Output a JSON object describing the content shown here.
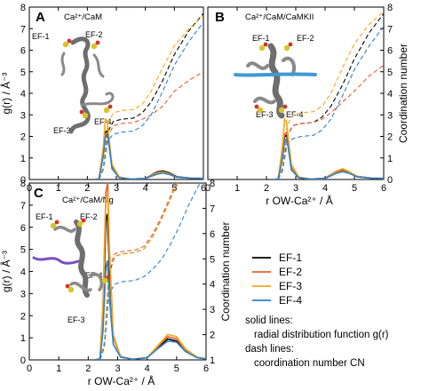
{
  "colors": {
    "EF-1": "#000000",
    "EF-2": "#e8602c",
    "EF-3": "#f2a81d",
    "EF-4": "#2f80c8",
    "protein": "#6e6e6e",
    "peptide_B": "#3e9ad2",
    "peptide_C": "#7a4fc2"
  },
  "legend": {
    "entries": [
      "EF-1",
      "EF-2",
      "EF-3",
      "EF-4"
    ],
    "solid_header": "solid lines:",
    "solid_text": "radial distribution function g(r)",
    "dash_header": "dash lines:",
    "dash_text": "coordination number CN"
  },
  "chart_data": [
    {
      "panel": "A",
      "title": "Ca²⁺/CaM",
      "type": "line",
      "xlabel": "",
      "ylabel": "g(r) / Å⁻³",
      "y2label": "",
      "xlim": [
        0,
        6
      ],
      "ylim": [
        0,
        8
      ],
      "y2lim": [
        0,
        8
      ],
      "xticks": [
        "0",
        "1",
        "2",
        "3",
        "4",
        "5",
        "6"
      ],
      "yticks": [
        "0",
        "1",
        "2",
        "3",
        "4",
        "5",
        "6",
        "7",
        "8"
      ],
      "y2ticks": [],
      "ef_labels": [
        "EF-1",
        "EF-2",
        "EF-4",
        "EF-3"
      ],
      "rdf": [
        {
          "name": "EF-1",
          "x": [
            2.2,
            2.4,
            2.55,
            2.62,
            2.7,
            2.85,
            3.1,
            3.5,
            4.0,
            4.4,
            4.6,
            4.8,
            5.1,
            5.6,
            6.0
          ],
          "y": [
            0,
            0.02,
            1.2,
            2.2,
            2.25,
            0.6,
            0.1,
            0.02,
            0.05,
            0.35,
            0.4,
            0.32,
            0.12,
            0.06,
            0.05
          ]
        },
        {
          "name": "EF-2",
          "x": [
            2.2,
            2.4,
            2.55,
            2.62,
            2.7,
            2.85,
            3.1,
            3.5,
            4.0,
            4.4,
            4.6,
            4.8,
            5.1,
            5.6,
            6.0
          ],
          "y": [
            0,
            0.02,
            1.1,
            2.1,
            2.15,
            0.55,
            0.08,
            0.02,
            0.05,
            0.32,
            0.36,
            0.28,
            0.1,
            0.06,
            0.05
          ]
        },
        {
          "name": "EF-3",
          "x": [
            2.2,
            2.4,
            2.55,
            2.62,
            2.68,
            2.85,
            3.1,
            3.5,
            4.0,
            4.4,
            4.6,
            4.8,
            5.1,
            5.6,
            6.0
          ],
          "y": [
            0,
            0.03,
            1.5,
            2.8,
            2.75,
            0.7,
            0.12,
            0.02,
            0.05,
            0.3,
            0.34,
            0.28,
            0.1,
            0.06,
            0.05
          ]
        },
        {
          "name": "EF-4",
          "x": [
            2.2,
            2.4,
            2.55,
            2.62,
            2.7,
            2.85,
            3.1,
            3.5,
            4.0,
            4.4,
            4.6,
            4.8,
            5.1,
            5.6,
            6.0
          ],
          "y": [
            0,
            0.02,
            1.1,
            2.0,
            2.1,
            0.5,
            0.08,
            0.02,
            0.05,
            0.25,
            0.3,
            0.24,
            0.1,
            0.06,
            0.05
          ]
        }
      ],
      "cn": [
        {
          "name": "EF-1",
          "x": [
            2.4,
            2.55,
            2.7,
            2.9,
            3.2,
            3.6,
            3.9,
            4.2,
            4.6,
            5.0,
            5.5,
            6.0
          ],
          "y": [
            0,
            0.5,
            2.2,
            2.7,
            2.8,
            2.85,
            3.1,
            3.6,
            4.6,
            5.8,
            6.9,
            7.7
          ]
        },
        {
          "name": "EF-2",
          "x": [
            2.4,
            2.55,
            2.7,
            2.9,
            3.2,
            3.6,
            3.9,
            4.2,
            4.6,
            5.0,
            5.5,
            6.0
          ],
          "y": [
            0,
            0.5,
            2.0,
            2.5,
            2.6,
            2.65,
            2.8,
            3.0,
            3.4,
            4.1,
            4.6,
            5.0
          ]
        },
        {
          "name": "EF-3",
          "x": [
            2.4,
            2.55,
            2.7,
            2.9,
            3.2,
            3.6,
            3.9,
            4.2,
            4.6,
            5.0,
            5.5,
            6.0
          ],
          "y": [
            0,
            0.6,
            2.6,
            3.1,
            3.2,
            3.25,
            3.5,
            4.1,
            5.2,
            6.2,
            7.0,
            7.6
          ]
        },
        {
          "name": "EF-4",
          "x": [
            2.4,
            2.55,
            2.7,
            2.9,
            3.2,
            3.6,
            3.9,
            4.2,
            4.6,
            5.0,
            5.5,
            6.0
          ],
          "y": [
            0,
            0.45,
            1.8,
            2.1,
            2.2,
            2.25,
            2.5,
            3.0,
            4.1,
            5.3,
            6.4,
            7.3
          ]
        }
      ]
    },
    {
      "panel": "B",
      "title": "Ca²⁺/CaM/CaMKII",
      "type": "line",
      "xlabel": "r OW-Ca²⁺ / Å",
      "ylabel": "",
      "y2label": "Coordination number",
      "xlim": [
        0,
        6
      ],
      "ylim": [
        0,
        8
      ],
      "y2lim": [
        0,
        8
      ],
      "xticks": [
        "0",
        "1",
        "2",
        "3",
        "4",
        "5",
        "6"
      ],
      "yticks": [],
      "y2ticks": [
        "0",
        "1",
        "2",
        "3",
        "4",
        "5",
        "6",
        "7",
        "8"
      ],
      "ef_labels": [
        "EF-1",
        "EF-2",
        "EF-3",
        "EF-4"
      ],
      "rdf": [
        {
          "name": "EF-1",
          "x": [
            2.2,
            2.4,
            2.55,
            2.62,
            2.7,
            2.85,
            3.1,
            3.5,
            4.0,
            4.4,
            4.6,
            4.8,
            5.1,
            5.6,
            6.0
          ],
          "y": [
            0,
            0.02,
            1.1,
            2.0,
            2.05,
            0.5,
            0.08,
            0.02,
            0.06,
            0.4,
            0.45,
            0.36,
            0.14,
            0.06,
            0.05
          ]
        },
        {
          "name": "EF-2",
          "x": [
            2.2,
            2.4,
            2.55,
            2.62,
            2.7,
            2.85,
            3.1,
            3.5,
            4.0,
            4.4,
            4.6,
            4.8,
            5.1,
            5.6,
            6.0
          ],
          "y": [
            0,
            0.02,
            1.2,
            2.1,
            2.2,
            0.55,
            0.08,
            0.02,
            0.05,
            0.35,
            0.42,
            0.34,
            0.12,
            0.06,
            0.05
          ]
        },
        {
          "name": "EF-3",
          "x": [
            2.2,
            2.4,
            2.55,
            2.62,
            2.68,
            2.85,
            3.1,
            3.5,
            4.0,
            4.4,
            4.6,
            4.8,
            5.1,
            5.6,
            6.0
          ],
          "y": [
            0,
            0.03,
            1.6,
            2.8,
            2.7,
            0.7,
            0.12,
            0.02,
            0.05,
            0.4,
            0.5,
            0.38,
            0.14,
            0.06,
            0.05
          ]
        },
        {
          "name": "EF-4",
          "x": [
            2.2,
            2.4,
            2.55,
            2.62,
            2.7,
            2.85,
            3.1,
            3.5,
            4.0,
            4.4,
            4.6,
            4.8,
            5.1,
            5.6,
            6.0
          ],
          "y": [
            0,
            0.02,
            1.0,
            1.8,
            1.9,
            0.45,
            0.08,
            0.02,
            0.05,
            0.3,
            0.36,
            0.3,
            0.12,
            0.06,
            0.05
          ]
        }
      ],
      "cn": [
        {
          "name": "EF-1",
          "x": [
            2.4,
            2.55,
            2.7,
            2.9,
            3.2,
            3.6,
            3.9,
            4.2,
            4.6,
            5.0,
            5.5,
            6.0
          ],
          "y": [
            0,
            0.5,
            2.0,
            2.5,
            2.6,
            2.65,
            2.9,
            3.4,
            4.4,
            5.6,
            6.8,
            7.7
          ]
        },
        {
          "name": "EF-2",
          "x": [
            2.4,
            2.55,
            2.7,
            2.9,
            3.2,
            3.6,
            3.9,
            4.2,
            4.6,
            5.0,
            5.5,
            6.0
          ],
          "y": [
            0,
            0.5,
            2.0,
            2.5,
            2.6,
            2.65,
            2.8,
            3.1,
            3.6,
            4.1,
            4.8,
            5.3
          ]
        },
        {
          "name": "EF-3",
          "x": [
            2.4,
            2.55,
            2.7,
            2.9,
            3.2,
            3.6,
            3.9,
            4.2,
            4.6,
            5.0,
            5.5,
            6.0
          ],
          "y": [
            0,
            0.6,
            2.5,
            3.0,
            3.1,
            3.15,
            3.4,
            4.0,
            5.2,
            6.3,
            7.2,
            7.8
          ]
        },
        {
          "name": "EF-4",
          "x": [
            2.4,
            2.55,
            2.7,
            2.9,
            3.2,
            3.6,
            3.9,
            4.2,
            4.6,
            5.0,
            5.5,
            6.0
          ],
          "y": [
            0,
            0.4,
            1.6,
            1.9,
            2.0,
            2.05,
            2.3,
            2.8,
            3.9,
            5.1,
            6.2,
            7.1
          ]
        }
      ]
    },
    {
      "panel": "C",
      "title": "Ca²⁺/CaM/Ng",
      "type": "line",
      "xlabel": "r OW-Ca²⁺ / Å",
      "ylabel": "g(r) / Å⁻³",
      "y2label": "Coordination number",
      "xlim": [
        0,
        6
      ],
      "ylim": [
        0,
        8
      ],
      "y2lim": [
        1,
        8
      ],
      "xticks": [
        "0",
        "1",
        "2",
        "3",
        "4",
        "5",
        "6"
      ],
      "yticks": [
        "0",
        "1",
        "2",
        "3",
        "4",
        "5",
        "6",
        "7",
        "8"
      ],
      "y2ticks": [
        "1",
        "2",
        "3",
        "4",
        "5",
        "6",
        "7",
        "8"
      ],
      "ef_labels": [
        "EF-1",
        "EF-2",
        "EF-4",
        "EF-3"
      ],
      "rdf": [
        {
          "name": "EF-1",
          "x": [
            2.2,
            2.4,
            2.5,
            2.6,
            2.65,
            2.72,
            2.85,
            3.1,
            3.5,
            4.0,
            4.4,
            4.7,
            5.0,
            5.3,
            5.7,
            6.0
          ],
          "y": [
            0,
            0.05,
            1.8,
            6.3,
            6.6,
            4.2,
            1.0,
            0.15,
            0.03,
            0.1,
            0.6,
            0.95,
            0.85,
            0.4,
            0.1,
            0.05
          ]
        },
        {
          "name": "EF-2",
          "x": [
            2.2,
            2.4,
            2.5,
            2.6,
            2.66,
            2.72,
            2.85,
            3.1,
            3.5,
            4.0,
            4.4,
            4.7,
            5.0,
            5.3,
            5.7,
            6.0
          ],
          "y": [
            0,
            0.05,
            2.5,
            7.6,
            8.0,
            5.0,
            1.1,
            0.15,
            0.03,
            0.1,
            0.65,
            1.05,
            0.95,
            0.45,
            0.12,
            0.05
          ]
        },
        {
          "name": "EF-3",
          "x": [
            2.2,
            2.4,
            2.5,
            2.6,
            2.66,
            2.72,
            2.85,
            3.1,
            3.5,
            4.0,
            4.4,
            4.7,
            5.0,
            5.3,
            5.7,
            6.0
          ],
          "y": [
            0,
            0.05,
            2.3,
            7.2,
            7.5,
            4.8,
            1.0,
            0.15,
            0.03,
            0.1,
            0.7,
            1.15,
            1.05,
            0.5,
            0.12,
            0.05
          ]
        },
        {
          "name": "EF-4",
          "x": [
            2.2,
            2.4,
            2.5,
            2.6,
            2.65,
            2.72,
            2.85,
            3.1,
            3.5,
            4.0,
            4.4,
            4.7,
            5.0,
            5.3,
            5.7,
            6.0
          ],
          "y": [
            0,
            0.04,
            1.3,
            4.2,
            4.5,
            2.8,
            0.7,
            0.12,
            0.03,
            0.1,
            0.55,
            0.85,
            0.8,
            0.38,
            0.1,
            0.05
          ]
        }
      ],
      "cn": [
        {
          "name": "EF-1",
          "x": [
            2.4,
            2.55,
            2.7,
            2.9,
            3.2,
            3.6,
            3.9,
            4.2,
            4.5,
            4.8,
            5.1,
            5.4
          ],
          "y": [
            1,
            1.6,
            4.4,
            5.1,
            5.2,
            5.25,
            5.4,
            5.9,
            6.6,
            7.4,
            8.2,
            9.0
          ]
        },
        {
          "name": "EF-2",
          "x": [
            2.4,
            2.55,
            2.7,
            2.9,
            3.2,
            3.6,
            3.9,
            4.2,
            4.5,
            4.8,
            5.1,
            5.4
          ],
          "y": [
            1,
            1.7,
            4.6,
            5.2,
            5.3,
            5.35,
            5.5,
            6.0,
            6.7,
            7.5,
            8.3,
            9.0
          ]
        },
        {
          "name": "EF-3",
          "x": [
            2.4,
            2.55,
            2.7,
            2.9,
            3.2,
            3.6,
            3.9,
            4.2,
            4.5,
            4.8,
            5.1,
            5.4
          ],
          "y": [
            1,
            1.7,
            4.5,
            5.1,
            5.2,
            5.25,
            5.4,
            5.9,
            6.6,
            7.4,
            8.2,
            9.0
          ]
        },
        {
          "name": "EF-4",
          "x": [
            2.4,
            2.55,
            2.7,
            2.9,
            3.2,
            3.6,
            3.9,
            4.2,
            4.5,
            4.8,
            5.1,
            5.4,
            5.7,
            6.0
          ],
          "y": [
            1,
            1.5,
            3.6,
            4.0,
            4.1,
            4.15,
            4.3,
            4.6,
            5.0,
            5.6,
            6.3,
            7.1,
            7.8,
            8.4
          ]
        }
      ]
    }
  ]
}
